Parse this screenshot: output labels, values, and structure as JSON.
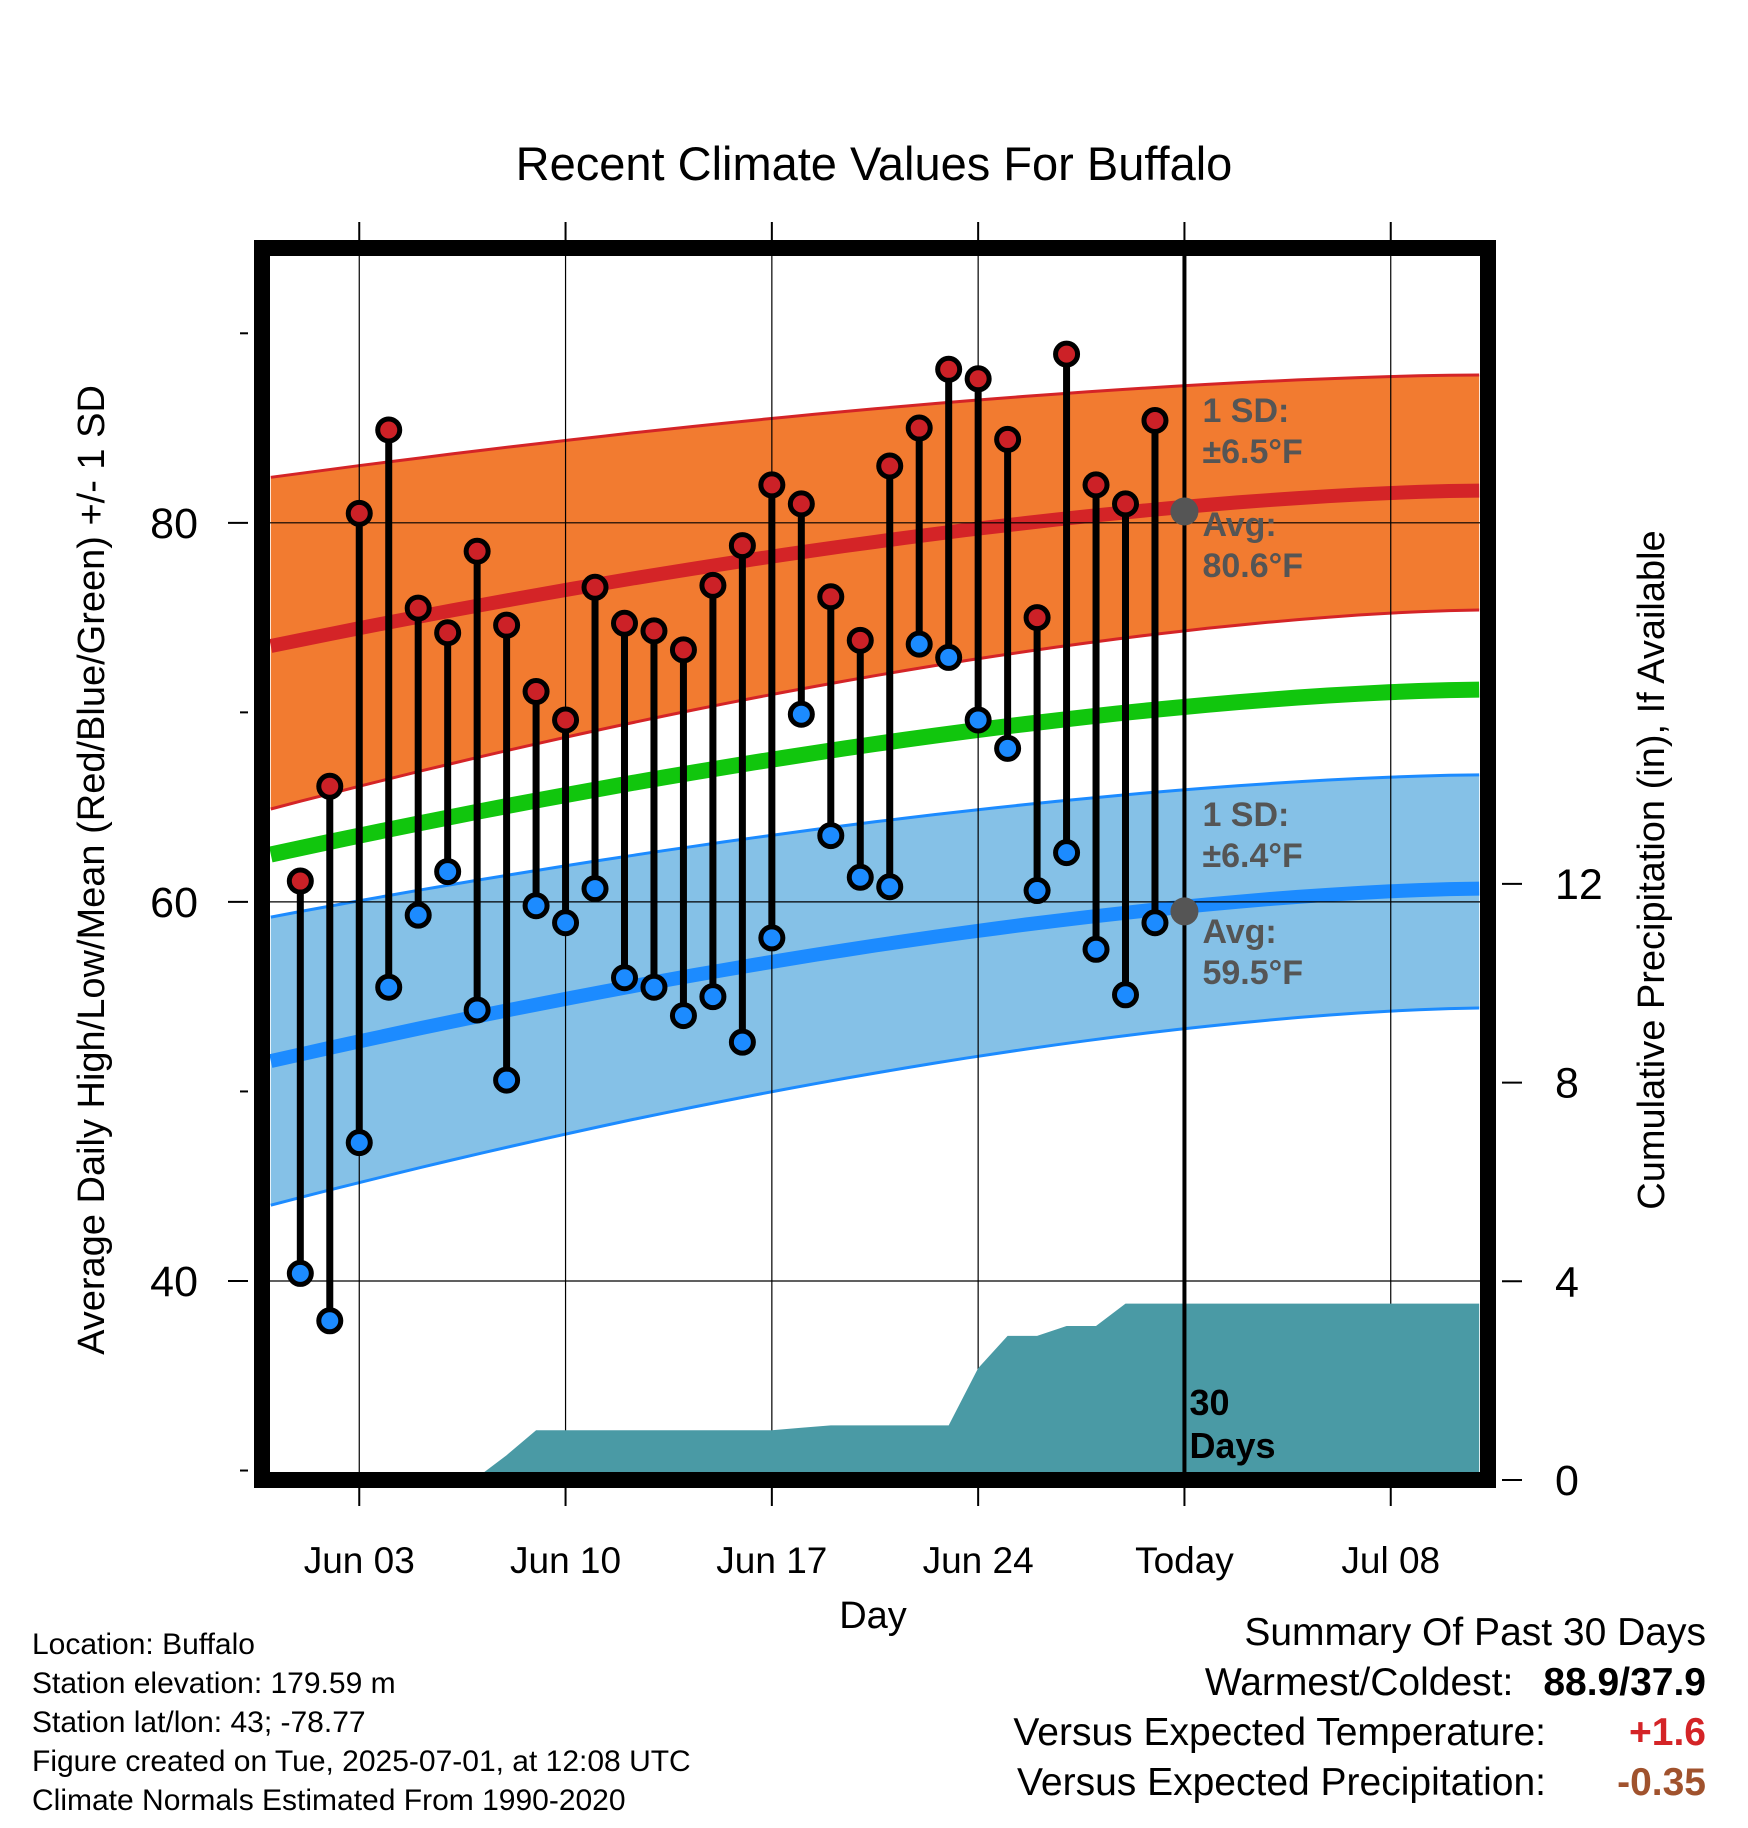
{
  "chart_data": {
    "type": "line",
    "title": "Recent Climate Values For Buffalo",
    "xlabel": "Day",
    "ylabel": "Average Daily High/Low/Mean (Red/Blue/Green) +/- 1 SD",
    "y2label": "Cumulative Precipitation (in), If Available",
    "x_ticks": [
      "Jun 03",
      "Jun 10",
      "Jun 17",
      "Jun 24",
      "Today",
      "Jul 08"
    ],
    "x_tick_days": [
      3,
      10,
      17,
      24,
      31,
      38
    ],
    "xlim": [
      -0.3,
      41.3
    ],
    "y_ticks": [
      40,
      60,
      80
    ],
    "ylim": [
      29.5,
      94.5
    ],
    "y2_ticks": [
      0,
      4,
      8,
      12
    ],
    "y2lim": [
      0,
      24.8
    ],
    "today_day": 31,
    "daily_temps": {
      "days": [
        1,
        2,
        3,
        4,
        5,
        6,
        7,
        8,
        9,
        10,
        11,
        12,
        13,
        14,
        15,
        16,
        17,
        18,
        19,
        20,
        21,
        22,
        23,
        24,
        25,
        26,
        27,
        28,
        29,
        30
      ],
      "highs": [
        61.1,
        66.1,
        80.5,
        84.9,
        75.5,
        74.2,
        78.5,
        74.6,
        71.1,
        69.6,
        76.6,
        74.7,
        74.3,
        73.3,
        76.7,
        78.8,
        82.0,
        81.0,
        76.1,
        73.8,
        83.0,
        85.0,
        88.1,
        87.6,
        84.4,
        75.0,
        88.9,
        82.0,
        81.0,
        85.4
      ],
      "lows": [
        40.4,
        37.9,
        47.3,
        55.5,
        59.3,
        61.6,
        54.3,
        50.6,
        59.8,
        58.9,
        60.7,
        56.0,
        55.5,
        54.0,
        55.0,
        52.6,
        58.1,
        69.9,
        63.5,
        61.3,
        60.8,
        73.6,
        72.9,
        69.6,
        68.1,
        60.6,
        62.6,
        57.5,
        55.1,
        58.9
      ]
    },
    "series": [
      {
        "name": "Average High",
        "x": [
          0,
          41
        ],
        "y": [
          73.5,
          81.7
        ],
        "color": "#d42427"
      },
      {
        "name": "Average High +/- 1 SD",
        "color": "#f27b30",
        "upper": [
          82.4,
          87.8
        ],
        "lower": [
          64.9,
          75.4
        ]
      },
      {
        "name": "Average Mean",
        "x": [
          0,
          41
        ],
        "y": [
          62.5,
          71.2
        ],
        "color": "#11c60d"
      },
      {
        "name": "Average Low",
        "x": [
          0,
          41
        ],
        "y": [
          51.6,
          60.7
        ],
        "color": "#1c8bff"
      },
      {
        "name": "Average Low +/- 1 SD",
        "color": "#85c1e7",
        "upper": [
          59.2,
          66.7
        ],
        "lower": [
          44.0,
          54.4
        ]
      },
      {
        "name": "Cumulative Precipitation",
        "color": "#4a9aa5",
        "x": [
          0,
          6,
          7,
          8,
          9,
          16,
          17,
          18,
          19,
          23,
          24,
          25,
          26,
          27,
          28,
          29,
          30,
          31,
          41
        ],
        "y": [
          0,
          0,
          0.05,
          0.5,
          1.0,
          1.0,
          1.0,
          1.05,
          1.1,
          1.1,
          2.25,
          2.9,
          2.9,
          3.1,
          3.1,
          3.55,
          3.55,
          3.55,
          3.55
        ]
      }
    ],
    "annotations": {
      "high_sd_label": "1 SD:",
      "high_sd_value": "±6.5°F",
      "high_avg_label": "Avg:",
      "high_avg_value": "80.6°F",
      "low_sd_label": "1 SD:",
      "low_sd_value": "±6.4°F",
      "low_avg_label": "Avg:",
      "low_avg_value": "59.5°F",
      "period_label_1": "30",
      "period_label_2": "Days",
      "today_avg_high": 80.6,
      "today_avg_low": 59.5
    },
    "grid": true
  },
  "footer": {
    "location": "Location: Buffalo",
    "elevation": "Station elevation: 179.59 m",
    "latlon": "Station lat/lon: 43; -78.77",
    "created": "Figure created on Tue, 2025-07-01, at 12:08 UTC",
    "normals": "Climate Normals Estimated From 1990-2020"
  },
  "summary": {
    "heading": "Summary Of Past 30 Days",
    "warm_cold_label": "Warmest/Coldest:",
    "warm_cold_value": "88.9/37.9",
    "temp_label": "Versus Expected Temperature:",
    "temp_value": "+1.6",
    "temp_color": "#d42427",
    "precip_label": "Versus Expected Precipitation:",
    "precip_value": "-0.35",
    "precip_color": "#a0522d"
  }
}
